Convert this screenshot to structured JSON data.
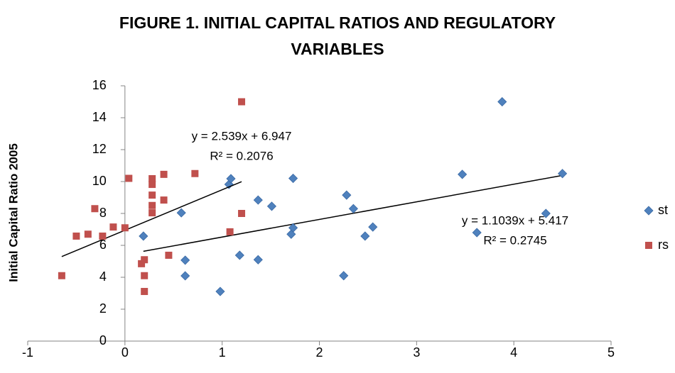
{
  "chart_data": {
    "type": "scatter",
    "title": "FIGURE 1. INITIAL CAPITAL RATIOS AND REGULATORY VARIABLES",
    "y_label": "Initial Capital Ratio 2005",
    "xlim": [
      -1,
      5
    ],
    "xticks": [
      -1,
      0,
      1,
      2,
      3,
      4,
      5
    ],
    "ylim": [
      0,
      16
    ],
    "yticks": [
      0,
      2,
      4,
      6,
      8,
      10,
      12,
      14,
      16
    ],
    "grid": false,
    "legend": "right",
    "series": [
      {
        "name": "st",
        "color": "#4f81bd",
        "marker": "diamond",
        "x": [
          0.19,
          0.62,
          0.58,
          0.62,
          0.98,
          1.07,
          1.09,
          1.18,
          1.37,
          1.37,
          1.51,
          1.71,
          1.73,
          1.73,
          2.25,
          2.28,
          2.35,
          2.47,
          2.55,
          3.47,
          3.62,
          3.88,
          4.33,
          4.5
        ],
        "values": [
          6.58,
          5.07,
          8.04,
          4.09,
          3.11,
          9.82,
          10.18,
          5.38,
          8.84,
          5.1,
          8.45,
          6.7,
          7.1,
          10.2,
          4.1,
          9.15,
          8.3,
          6.58,
          7.15,
          10.45,
          6.8,
          15.0,
          8.0,
          10.5
        ],
        "trendline": {
          "slope": 1.1039,
          "intercept": 5.417,
          "label": "y = 1.1039x + 5.417",
          "r2_label": "R² = 0.2745"
        }
      },
      {
        "name": "rs",
        "color": "#c0504d",
        "marker": "square",
        "x": [
          -0.65,
          -0.5,
          -0.38,
          -0.31,
          -0.23,
          -0.12,
          0.0,
          0.04,
          0.17,
          0.2,
          0.2,
          0.2,
          0.45,
          0.4,
          0.4,
          0.28,
          0.28,
          0.28,
          0.28,
          0.28,
          0.72,
          1.08,
          1.2,
          1.2
        ],
        "values": [
          4.1,
          6.58,
          6.7,
          8.3,
          6.58,
          7.15,
          7.1,
          10.2,
          4.85,
          5.1,
          4.1,
          3.11,
          5.38,
          8.84,
          10.45,
          10.18,
          9.82,
          9.15,
          8.5,
          8.04,
          10.5,
          6.85,
          8.0,
          15.0
        ],
        "trendline": {
          "slope": 2.539,
          "intercept": 6.947,
          "label": "y = 2.539x + 6.947",
          "r2_label": "R² = 0.2076"
        }
      }
    ]
  }
}
